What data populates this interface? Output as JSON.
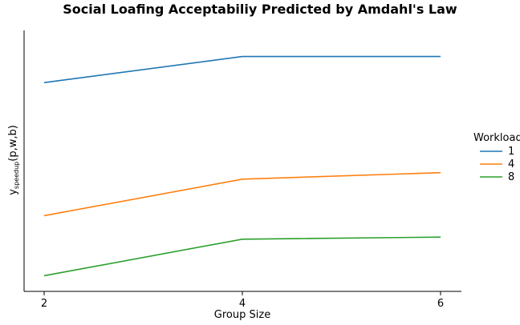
{
  "chart_data": {
    "type": "line",
    "title": "Social Loafing Acceptabiliy Predicted by Amdahl's Law",
    "xlabel": "Group Size",
    "ylabel": {
      "base": "y",
      "subscript": "speedup",
      "suffix": "(p,w,b)"
    },
    "x": [
      2,
      4,
      6
    ],
    "x_ticks": [
      "2",
      "4",
      "6"
    ],
    "y_ticks_shown": false,
    "ylim": [
      0,
      1
    ],
    "legend": {
      "title": "Workload",
      "placement": "center-right, outside plot"
    },
    "series": [
      {
        "name": "1",
        "color": "#1f77b4",
        "values": [
          0.8,
          0.9,
          0.9
        ]
      },
      {
        "name": "4",
        "color": "#ff7f0e",
        "values": [
          0.29,
          0.43,
          0.455
        ]
      },
      {
        "name": "8",
        "color": "#2ca02c",
        "values": [
          0.06,
          0.2,
          0.208
        ]
      }
    ],
    "grid": false
  }
}
